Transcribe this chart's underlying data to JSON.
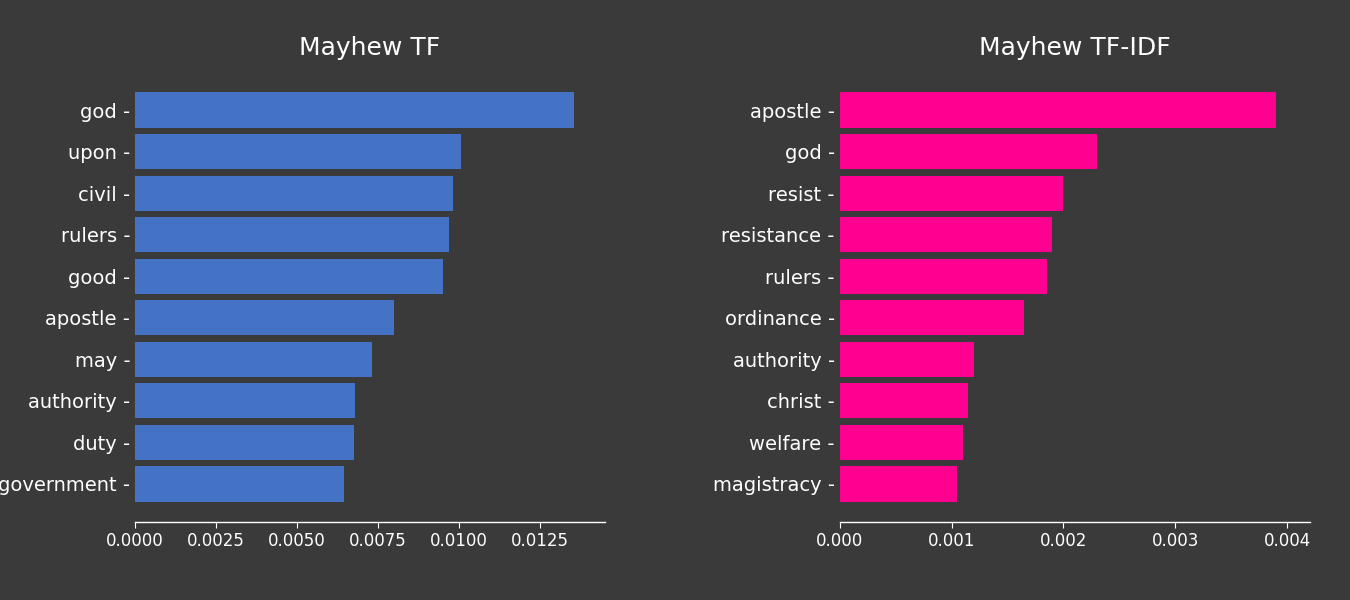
{
  "tf_labels": [
    "god",
    "upon",
    "civil",
    "rulers",
    "good",
    "apostle",
    "may",
    "authority",
    "duty",
    "government"
  ],
  "tf_values": [
    0.01355,
    0.01005,
    0.0098,
    0.0097,
    0.0095,
    0.008,
    0.0073,
    0.0068,
    0.00675,
    0.00645
  ],
  "tfidf_labels": [
    "apostle",
    "god",
    "resist",
    "resistance",
    "rulers",
    "ordinance",
    "authority",
    "christ",
    "welfare",
    "magistracy"
  ],
  "tfidf_values": [
    0.0039,
    0.0023,
    0.002,
    0.0019,
    0.00185,
    0.00165,
    0.0012,
    0.00115,
    0.0011,
    0.00105
  ],
  "tf_color": "#4472c4",
  "tfidf_color": "#ff0090",
  "tf_title": "Mayhew TF",
  "tfidf_title": "Mayhew TF-IDF",
  "background_color": "#3a3a3a",
  "text_color": "#ffffff",
  "title_fontsize": 18,
  "label_fontsize": 14,
  "tick_fontsize": 12
}
